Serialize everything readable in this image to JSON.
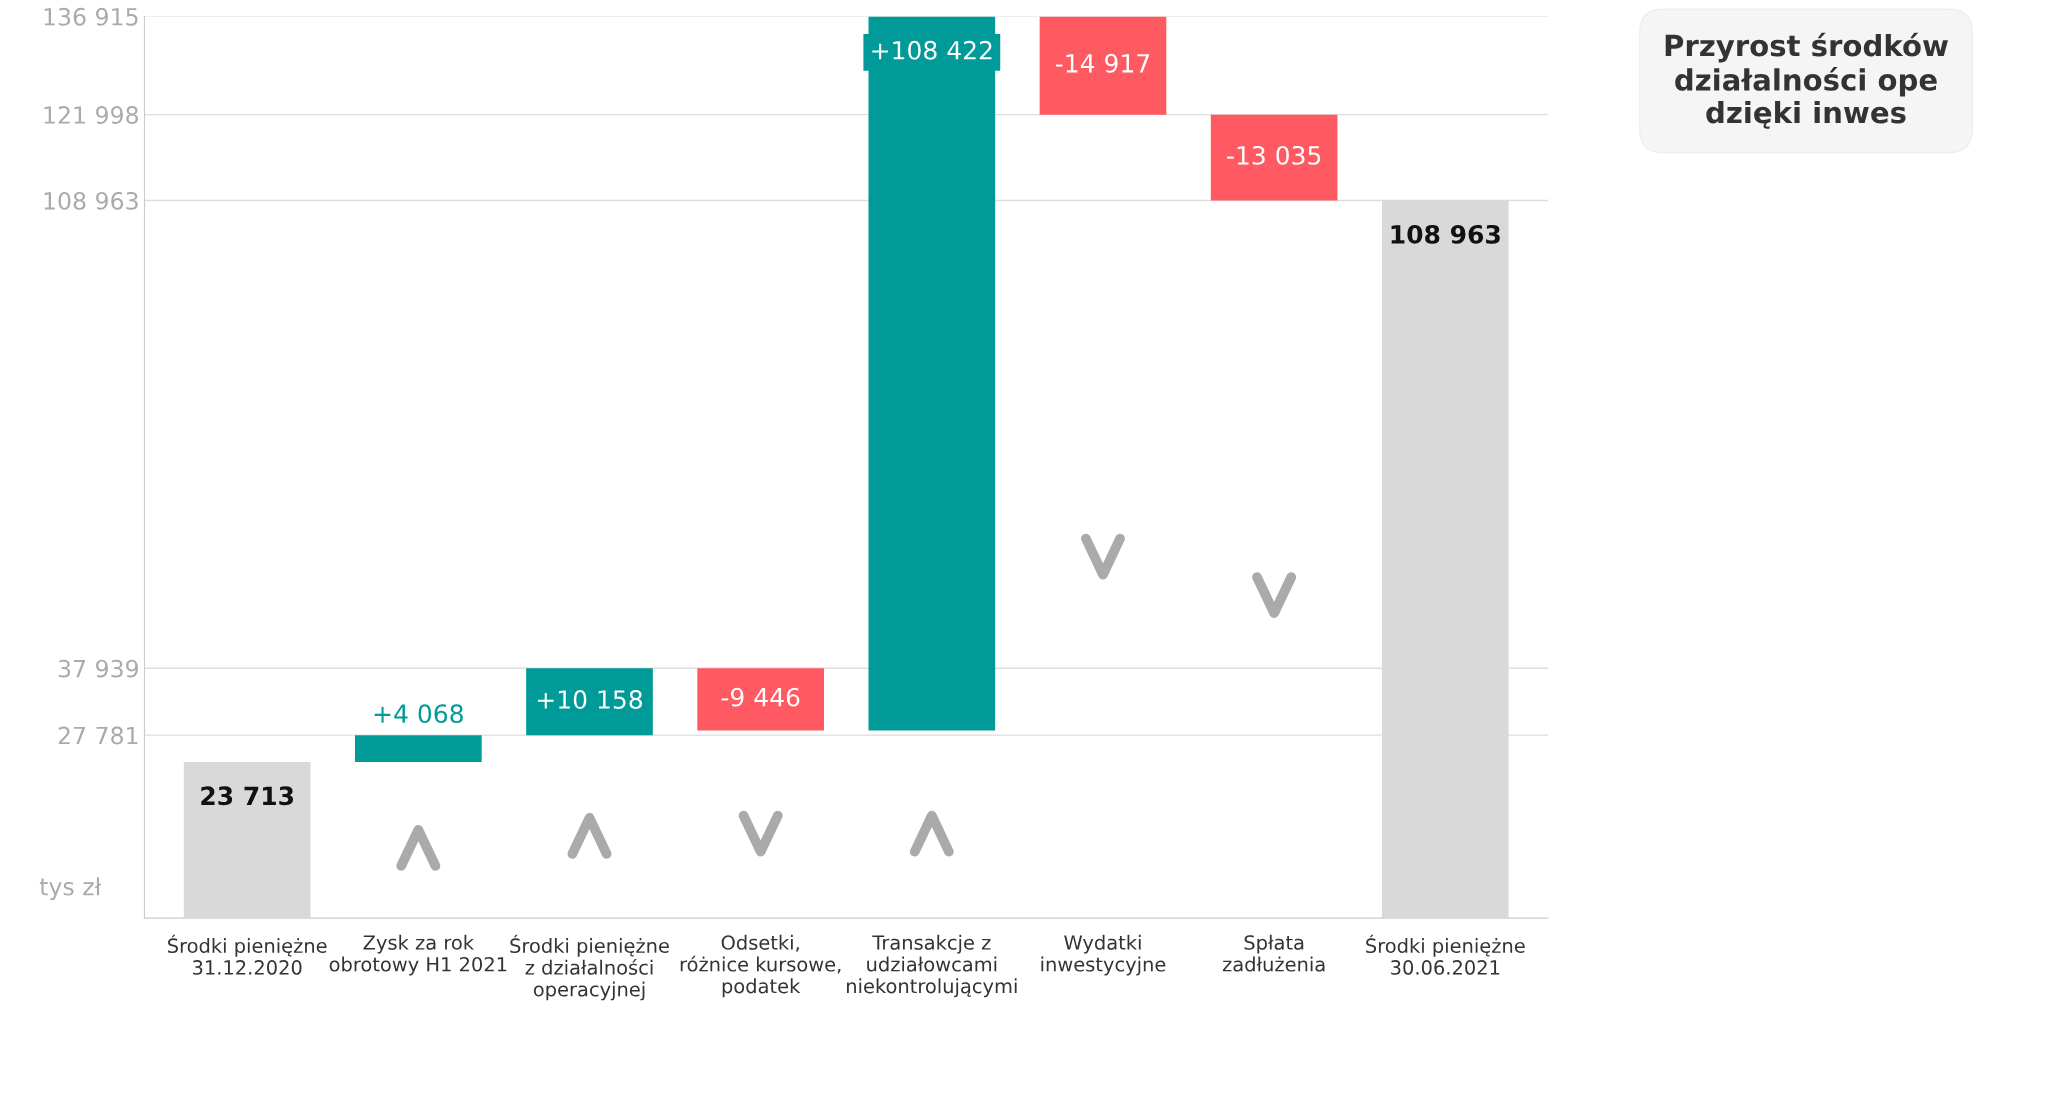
{
  "chart_data": {
    "type": "bar",
    "categories": [
      "Środki pieniężne\n31.12.2020",
      "Zysk za rok\nobrotowy H1 2021",
      "Środki pieniężne\nz działalności\noperacyjnej",
      "Odsetki,\nróżnice kursowe,\npodatek",
      "Transakcje z\nudziałowcami\nniekontrolującymi",
      "Wydatki\ninwestycyjne",
      "Spłata\nzadłużenia",
      "Środki pieniężne\n30.06.2021"
    ],
    "values": [
      23713,
      4068,
      10158,
      -9446,
      108422,
      -14917,
      -13035,
      108963
    ],
    "base": [
      0,
      23713,
      27781,
      37939,
      28493,
      136915,
      121998,
      0
    ],
    "colors": [
      "#d9d9d9",
      "#009b98",
      "#009b98",
      "#ff5a62",
      "#009b98",
      "#ff5a62",
      "#ff5a62",
      "#d9d9d9"
    ],
    "value_labels": [
      "23 713",
      "+4 068",
      "+10 158",
      "-9 446",
      "+108 422",
      "-14 917",
      "-13 035",
      "108 963"
    ],
    "ylabel": "tys zł",
    "ylim": [
      0,
      136915
    ],
    "yticks": [
      {
        "value": 27781,
        "label": "27 781"
      },
      {
        "value": 37939,
        "label": "37 939"
      },
      {
        "value": 108963,
        "label": "108 963"
      },
      {
        "value": 121998,
        "label": "121 998"
      },
      {
        "value": 136915,
        "label": "136 915"
      }
    ],
    "grid": "y",
    "legend": false,
    "annotations": [
      "Przyrost środków\ndziałalności ope\ndzięki inwes"
    ]
  }
}
